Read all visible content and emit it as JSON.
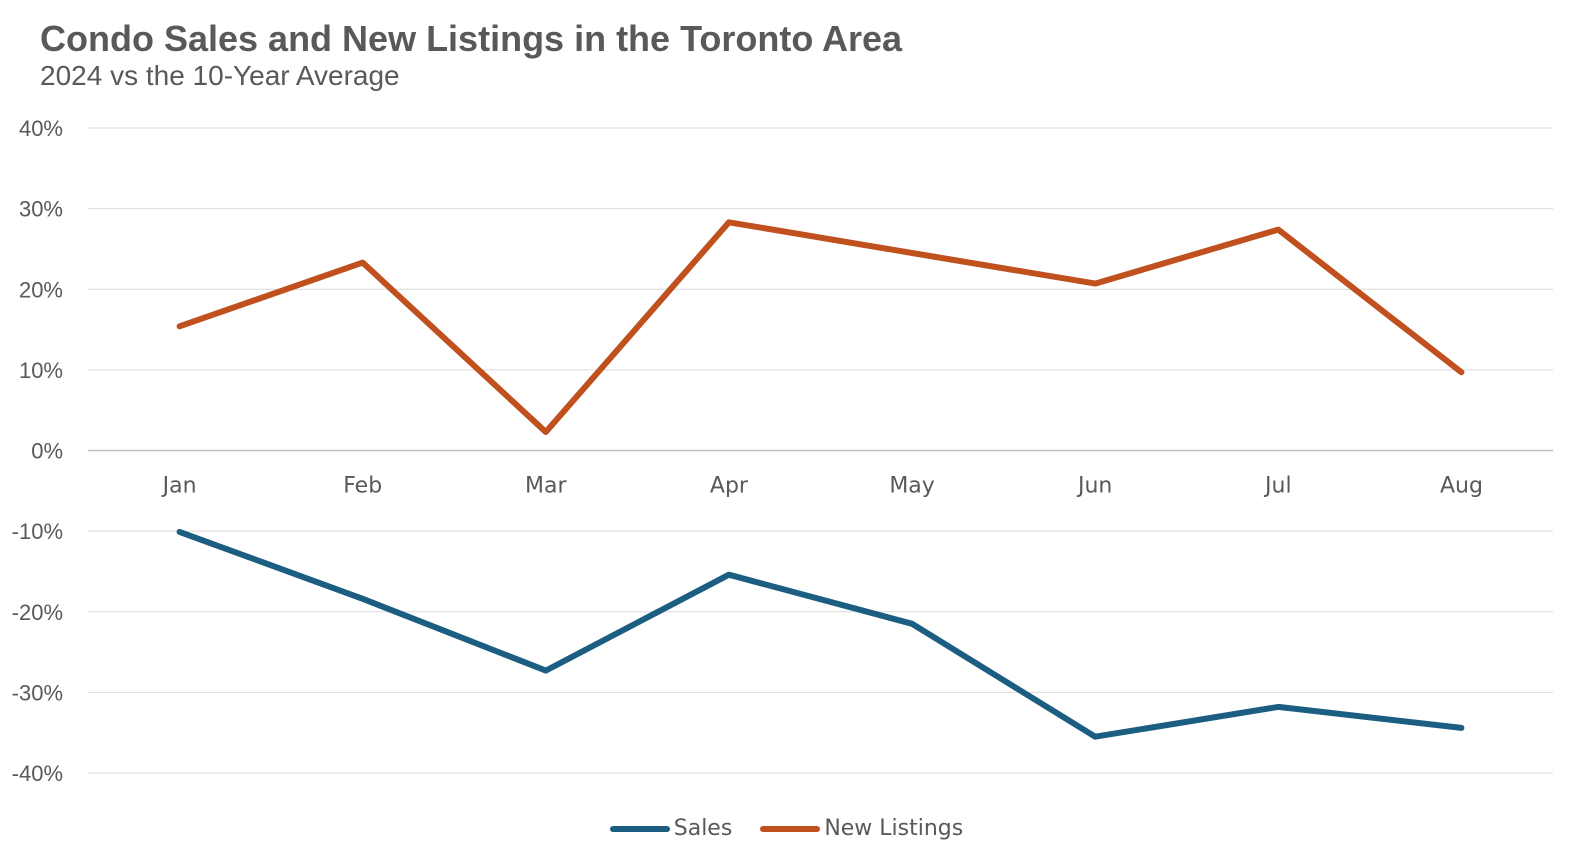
{
  "chart_data": {
    "type": "line",
    "title": "Condo Sales and New Listings in the Toronto Area",
    "subtitle": "2024 vs the 10-Year Average",
    "categories": [
      "Jan",
      "Feb",
      "Mar",
      "Apr",
      "May",
      "Jun",
      "Jul",
      "Aug"
    ],
    "y_tick_labels": [
      "40%",
      "30%",
      "20%",
      "10%",
      "0%",
      "-10%",
      "-20%",
      "-30%",
      "-40%"
    ],
    "ylim": [
      -40,
      40
    ],
    "y_unit": "%",
    "grid": true,
    "legend_position": "bottom",
    "series": [
      {
        "name": "Sales",
        "color": "#1B5E82",
        "values": [
          -10.1,
          -18.4,
          -27.3,
          -15.4,
          -21.5,
          -35.5,
          -31.8,
          -34.4
        ]
      },
      {
        "name": "New Listings",
        "color": "#C0501E",
        "values": [
          15.4,
          23.3,
          2.3,
          28.3,
          24.5,
          20.7,
          27.4,
          9.7
        ]
      }
    ]
  }
}
